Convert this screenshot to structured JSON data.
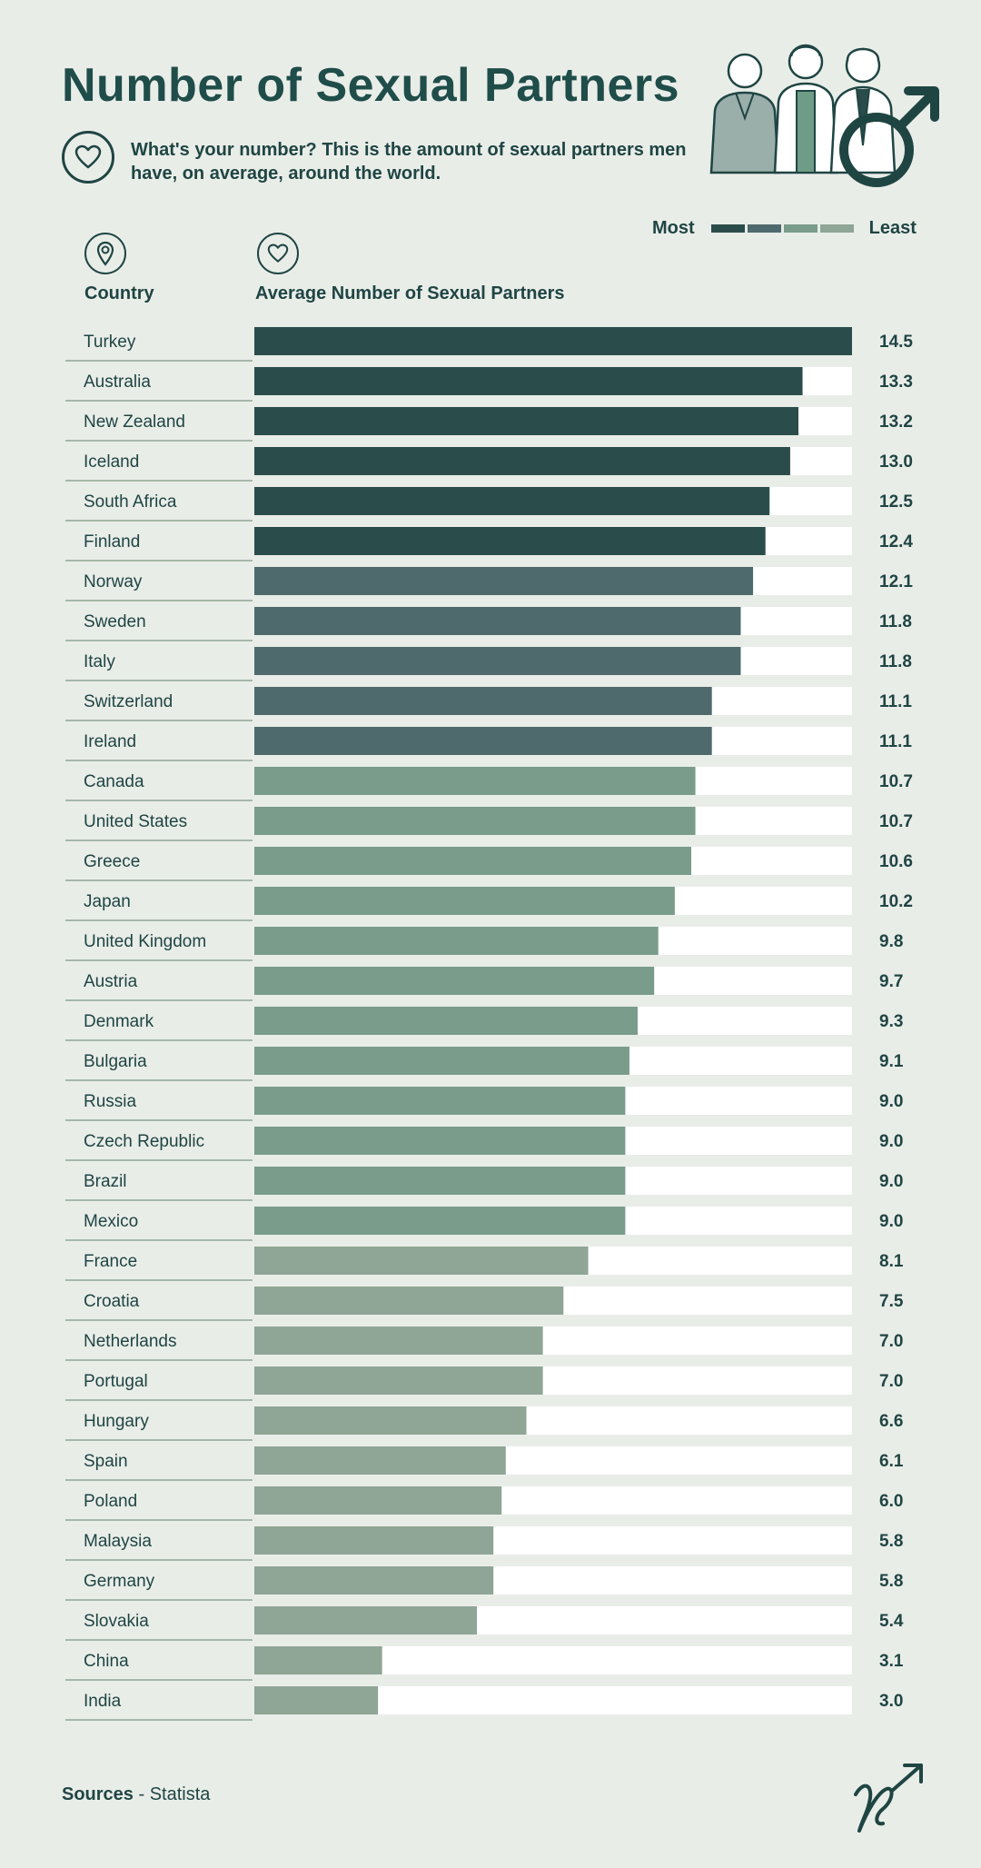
{
  "header": {
    "title": "Number of Sexual Partners",
    "subtitle": "What's your number? This is the amount of sexual partners men have, on average, around the world.",
    "icon": "heart-icon"
  },
  "legend": {
    "most_label": "Most",
    "least_label": "Least",
    "colors": [
      "#2a4d4b",
      "#4f6a6c",
      "#7a9c8a",
      "#8fa596"
    ]
  },
  "columns": {
    "country_label": "Country",
    "country_icon": "location-pin-icon",
    "value_label": "Average Number of Sexual Partners",
    "value_icon": "heart-icon"
  },
  "chart_data": {
    "type": "bar",
    "orientation": "horizontal",
    "title": "Number of Sexual Partners",
    "xlabel": "Average Number of Sexual Partners",
    "ylabel": "Country",
    "xlim": [
      0,
      14.5
    ],
    "grid": false,
    "legend_placement": "top-right",
    "categories": [
      "Turkey",
      "Australia",
      "New Zealand",
      "Iceland",
      "South Africa",
      "Finland",
      "Norway",
      "Sweden",
      "Italy",
      "Switzerland",
      "Ireland",
      "Canada",
      "United States",
      "Greece",
      "Japan",
      "United Kingdom",
      "Austria",
      "Denmark",
      "Bulgaria",
      "Russia",
      "Czech Republic",
      "Brazil",
      "Mexico",
      "France",
      "Croatia",
      "Netherlands",
      "Portugal",
      "Hungary",
      "Spain",
      "Poland",
      "Malaysia",
      "Germany",
      "Slovakia",
      "China",
      "India"
    ],
    "values": [
      14.5,
      13.3,
      13.2,
      13.0,
      12.5,
      12.4,
      12.1,
      11.8,
      11.8,
      11.1,
      11.1,
      10.7,
      10.7,
      10.6,
      10.2,
      9.8,
      9.7,
      9.3,
      9.1,
      9.0,
      9.0,
      9.0,
      9.0,
      8.1,
      7.5,
      7.0,
      7.0,
      6.6,
      6.1,
      6.0,
      5.8,
      5.8,
      5.4,
      3.1,
      3.0
    ],
    "value_labels": [
      "14.5",
      "13.3",
      "13.2",
      "13.0",
      "12.5",
      "12.4",
      "12.1",
      "11.8",
      "11.8",
      "11.1",
      "11.1",
      "10.7",
      "10.7",
      "10.6",
      "10.2",
      "9.8",
      "9.7",
      "9.3",
      "9.1",
      "9.0",
      "9.0",
      "9.0",
      "9.0",
      "8.1",
      "7.5",
      "7.0",
      "7.0",
      "6.6",
      "6.1",
      "6.0",
      "5.8",
      "5.8",
      "5.4",
      "3.1",
      "3.0"
    ],
    "tiers": [
      0,
      0,
      0,
      0,
      0,
      0,
      1,
      1,
      1,
      1,
      1,
      2,
      2,
      2,
      2,
      2,
      2,
      2,
      2,
      2,
      2,
      2,
      2,
      3,
      3,
      3,
      3,
      3,
      3,
      3,
      3,
      3,
      3,
      3,
      3
    ],
    "colors": {
      "tier_colors": [
        "#2a4d4b",
        "#4f6a6c",
        "#7a9c8a",
        "#8fa596"
      ],
      "track": "#ffffff",
      "text": "#1f4543",
      "divider": "#8fa596"
    }
  },
  "footer": {
    "sources_label": "Sources",
    "sources_text": " - Statista",
    "logo_icon": "male-symbol-logo-icon"
  }
}
